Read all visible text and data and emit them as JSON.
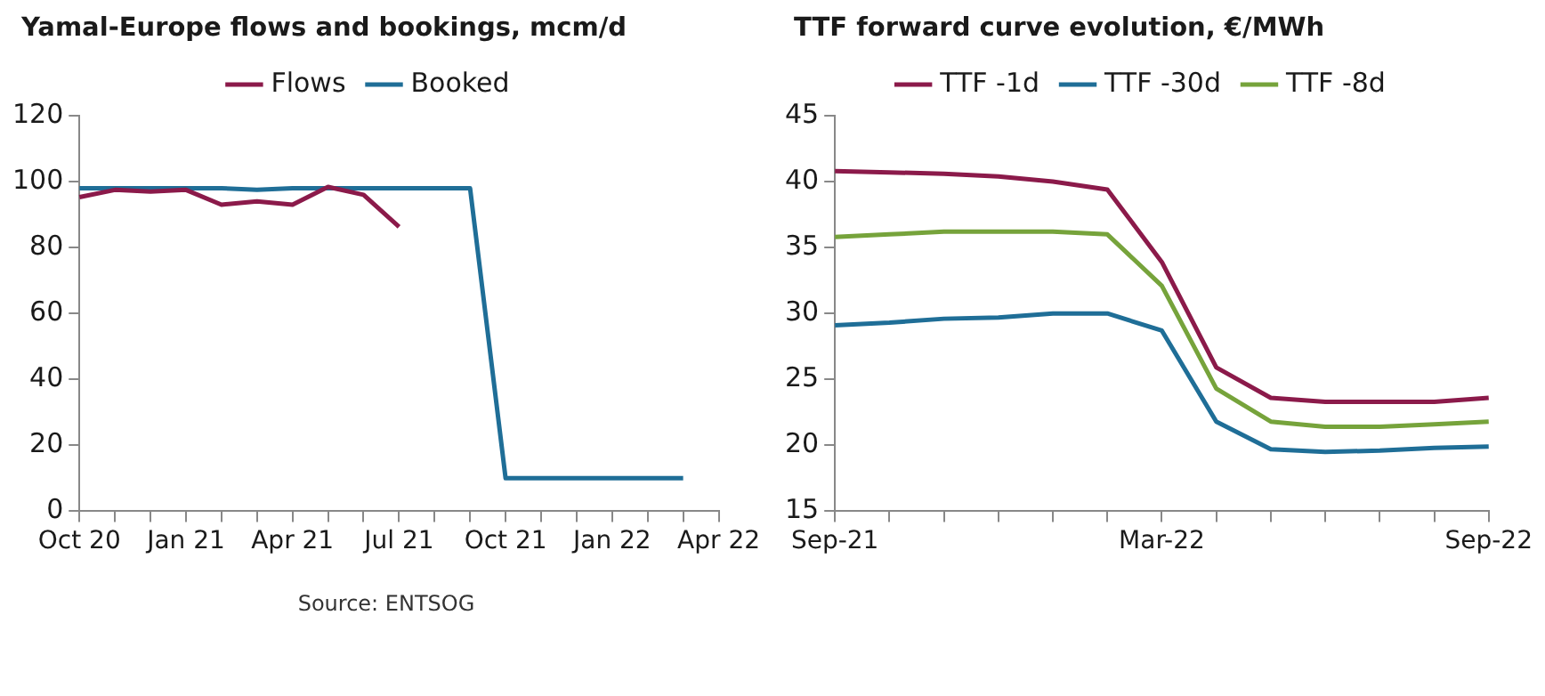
{
  "chart_data": [
    {
      "type": "line",
      "title": "Yamal-Europe flows and bookings, mcm/d",
      "categories": [
        "Oct 20",
        null,
        null,
        "Jan 21",
        null,
        null,
        "Apr 21",
        null,
        null,
        "Jul 21",
        null,
        null,
        "Oct 21",
        null,
        null,
        "Jan 22",
        null,
        null,
        "Apr 22"
      ],
      "series": [
        {
          "name": "Flows",
          "color": "#8b1a4a",
          "values": [
            95.3,
            97.5,
            97,
            97.5,
            93,
            94,
            93,
            98.4,
            96,
            86.3,
            null,
            null,
            null,
            null,
            null,
            null,
            null,
            null,
            null
          ]
        },
        {
          "name": "Booked",
          "color": "#1f6e97",
          "values": [
            98,
            98,
            98,
            98,
            98,
            97.5,
            98,
            98,
            98,
            98,
            98,
            98,
            10,
            10,
            10,
            10,
            10,
            10,
            null
          ]
        }
      ],
      "ylim": [
        0,
        120
      ],
      "yticks": [
        0,
        20,
        40,
        60,
        80,
        100,
        120
      ],
      "grid": false,
      "legend": "top",
      "annotations": [
        "Source: ENTSOG"
      ]
    },
    {
      "type": "line",
      "title": "TTF forward curve evolution, €/MWh",
      "categories": [
        "Sep-21",
        null,
        null,
        null,
        null,
        null,
        "Mar-22",
        null,
        null,
        null,
        null,
        null,
        "Sep-22"
      ],
      "series": [
        {
          "name": "TTF -1d",
          "color": "#8b1a4a",
          "values": [
            40.8,
            40.7,
            40.6,
            40.4,
            40,
            39.4,
            33.9,
            25.9,
            23.6,
            23.3,
            23.3,
            23.3,
            23.6
          ]
        },
        {
          "name": "TTF -30d",
          "color": "#1f6e97",
          "values": [
            29.1,
            29.3,
            29.6,
            29.7,
            30,
            30,
            28.7,
            21.8,
            19.7,
            19.5,
            19.6,
            19.8,
            19.9
          ]
        },
        {
          "name": "TTF -8d",
          "color": "#76a33b",
          "values": [
            35.8,
            36,
            36.2,
            36.2,
            36.2,
            36,
            32.1,
            24.3,
            21.8,
            21.4,
            21.4,
            21.6,
            21.8
          ]
        }
      ],
      "ylim": [
        15,
        45
      ],
      "yticks": [
        15,
        20,
        25,
        30,
        35,
        40,
        45
      ],
      "grid": false,
      "legend": "top"
    }
  ]
}
